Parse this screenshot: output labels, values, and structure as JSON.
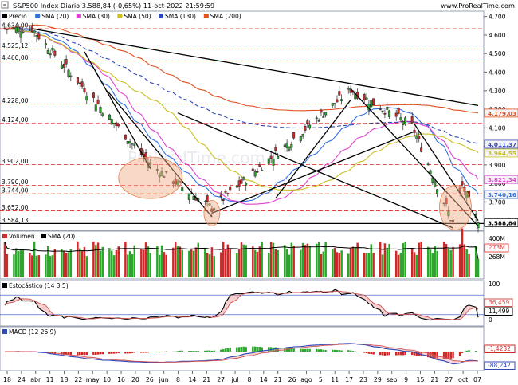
{
  "header": {
    "title": "S&P500 Index Diario 3.588,84 (-0,65%) 11-oct-2022 21:59:59",
    "source": "www.ProRealTime.com"
  },
  "panels": {
    "price": {
      "legend": [
        {
          "label": "Precio",
          "color": "#000000"
        },
        {
          "label": "SMA (20)",
          "color": "#2f6fe0"
        },
        {
          "label": "SMA (30)",
          "color": "#e040d0"
        },
        {
          "label": "SMA (50)",
          "color": "#c8c020"
        },
        {
          "label": "SMA (130)",
          "color": "#3048b8"
        },
        {
          "label": "SMA (200)",
          "color": "#e05020"
        }
      ],
      "watermark": "ProRealTime.com",
      "left_levels": [
        "4.634,00",
        "4.525,12",
        "4.460,00",
        "4.228,00",
        "4.124,00",
        "3.902,00",
        "3.790,00",
        "3.744,00",
        "3.652,00",
        "3.584,13"
      ],
      "right_ticks": [
        "4.700",
        "4.600",
        "4.500",
        "4.400",
        "4.300",
        "4.200",
        "4.100",
        "4.000",
        "3.900",
        "3.800",
        "3.700",
        "3.600"
      ],
      "right_badges": [
        {
          "value": "4.179,03",
          "color": "#e05020"
        },
        {
          "value": "4.011,37",
          "color": "#3048b8"
        },
        {
          "value": "3.964,55",
          "color": "#c8c020"
        },
        {
          "value": "3.821,34",
          "color": "#e040d0"
        },
        {
          "value": "3.740,16",
          "color": "#2f6fe0"
        },
        {
          "value": "3.588,84",
          "color": "#000000"
        }
      ]
    },
    "volume": {
      "legend": [
        {
          "label": "Volumen",
          "color": "#c83030"
        },
        {
          "label": "SMA (20)",
          "color": "#000000"
        }
      ],
      "right_labels": [
        "400M",
        "273M",
        "268M"
      ],
      "badge_color": "#e05050"
    },
    "stochastic": {
      "legend": [
        {
          "label": "Estocástico (14 3 5)",
          "color": "#000000"
        }
      ],
      "right_labels": [
        "100",
        "36,459",
        "11,499",
        "0"
      ]
    },
    "macd": {
      "legend": [
        {
          "label": "MACD (12 26 9)",
          "color": "#3048b8"
        }
      ],
      "right_labels": [
        "-1,4232",
        "-88,242"
      ]
    }
  },
  "x_axis": {
    "labels": [
      "18",
      "24",
      "abr",
      "11",
      "18",
      "22",
      "may",
      "10",
      "16",
      "20",
      "26",
      "jun",
      "8",
      "14",
      "21",
      "27",
      "jul",
      "8",
      "14",
      "21",
      "26",
      "ago",
      "5",
      "11",
      "17",
      "23",
      "29",
      "sep",
      "9",
      "15",
      "21",
      "27",
      "oct",
      "07"
    ]
  },
  "chart_data": {
    "type": "candlestick",
    "title": "S&P500 Index Diario 3.588,84 (-0,65%) 11-oct-2022 21:59:59",
    "ylim": [
      3560,
      4720
    ],
    "x_start": "2022-03-17",
    "x_end": "2022-10-11",
    "key_closes": [
      {
        "date": "2022-03-29",
        "value": 4634.0
      },
      {
        "date": "2022-05-20",
        "value": 3902.0
      },
      {
        "date": "2022-06-16",
        "value": 3666.0
      },
      {
        "date": "2022-08-16",
        "value": 4305.0
      },
      {
        "date": "2022-09-12",
        "value": 4110.0
      },
      {
        "date": "2022-09-30",
        "value": 3585.0
      },
      {
        "date": "2022-10-04",
        "value": 3790.0
      },
      {
        "date": "2022-10-11",
        "value": 3588.84
      }
    ],
    "last": {
      "close": 3588.84,
      "change_pct": -0.65
    },
    "moving_averages": [
      {
        "name": "SMA (20)",
        "last": 3740.16
      },
      {
        "name": "SMA (30)",
        "last": 3821.34
      },
      {
        "name": "SMA (50)",
        "last": 3964.55
      },
      {
        "name": "SMA (130)",
        "last": 4011.37
      },
      {
        "name": "SMA (200)",
        "last": 4179.03
      }
    ],
    "horizontal_levels": [
      4634.0,
      4525.12,
      4460.0,
      4228.0,
      4124.0,
      3902.0,
      3790.0,
      3744.0,
      3652.0,
      3584.13
    ],
    "volume": {
      "last_M": 273,
      "sma20_M": 268
    },
    "stochastic": {
      "k": 36.459,
      "d": 11.499,
      "levels": [
        20,
        80
      ]
    },
    "macd": {
      "macd": -88.242,
      "hist": -1.4232
    }
  }
}
